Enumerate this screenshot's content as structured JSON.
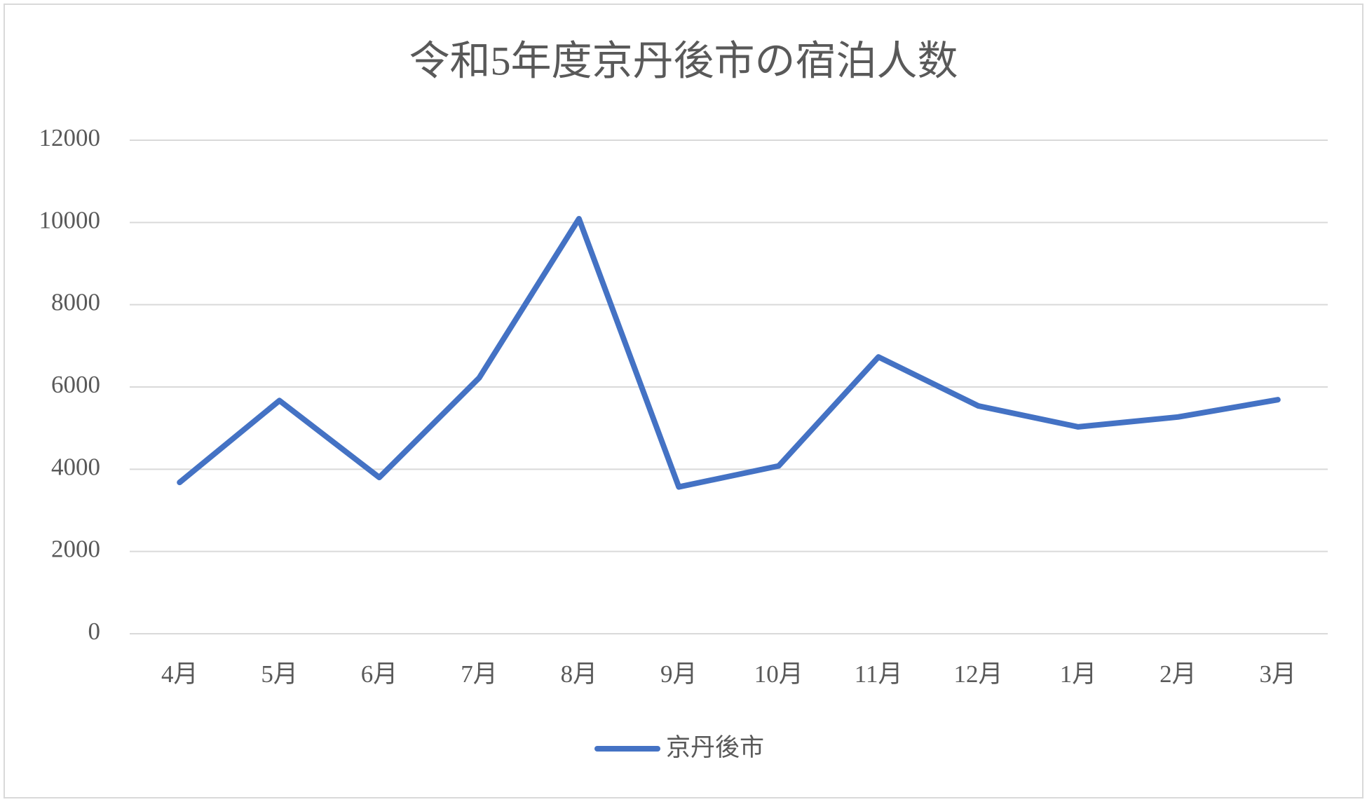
{
  "chart_data": {
    "type": "line",
    "title": "令和5年度京丹後市の宿泊人数",
    "categories": [
      "4月",
      "5月",
      "6月",
      "7月",
      "8月",
      "9月",
      "10月",
      "11月",
      "12月",
      "1月",
      "2月",
      "3月"
    ],
    "series": [
      {
        "name": "京丹後市",
        "color": "#4472c4",
        "values": [
          3680,
          5670,
          3800,
          6220,
          10090,
          3570,
          4080,
          6730,
          5540,
          5030,
          5270,
          5690
        ]
      }
    ],
    "ylim": [
      0,
      12000
    ],
    "yticks": [
      0,
      2000,
      4000,
      6000,
      8000,
      10000,
      12000
    ],
    "grid": true,
    "legend": "bottom"
  }
}
